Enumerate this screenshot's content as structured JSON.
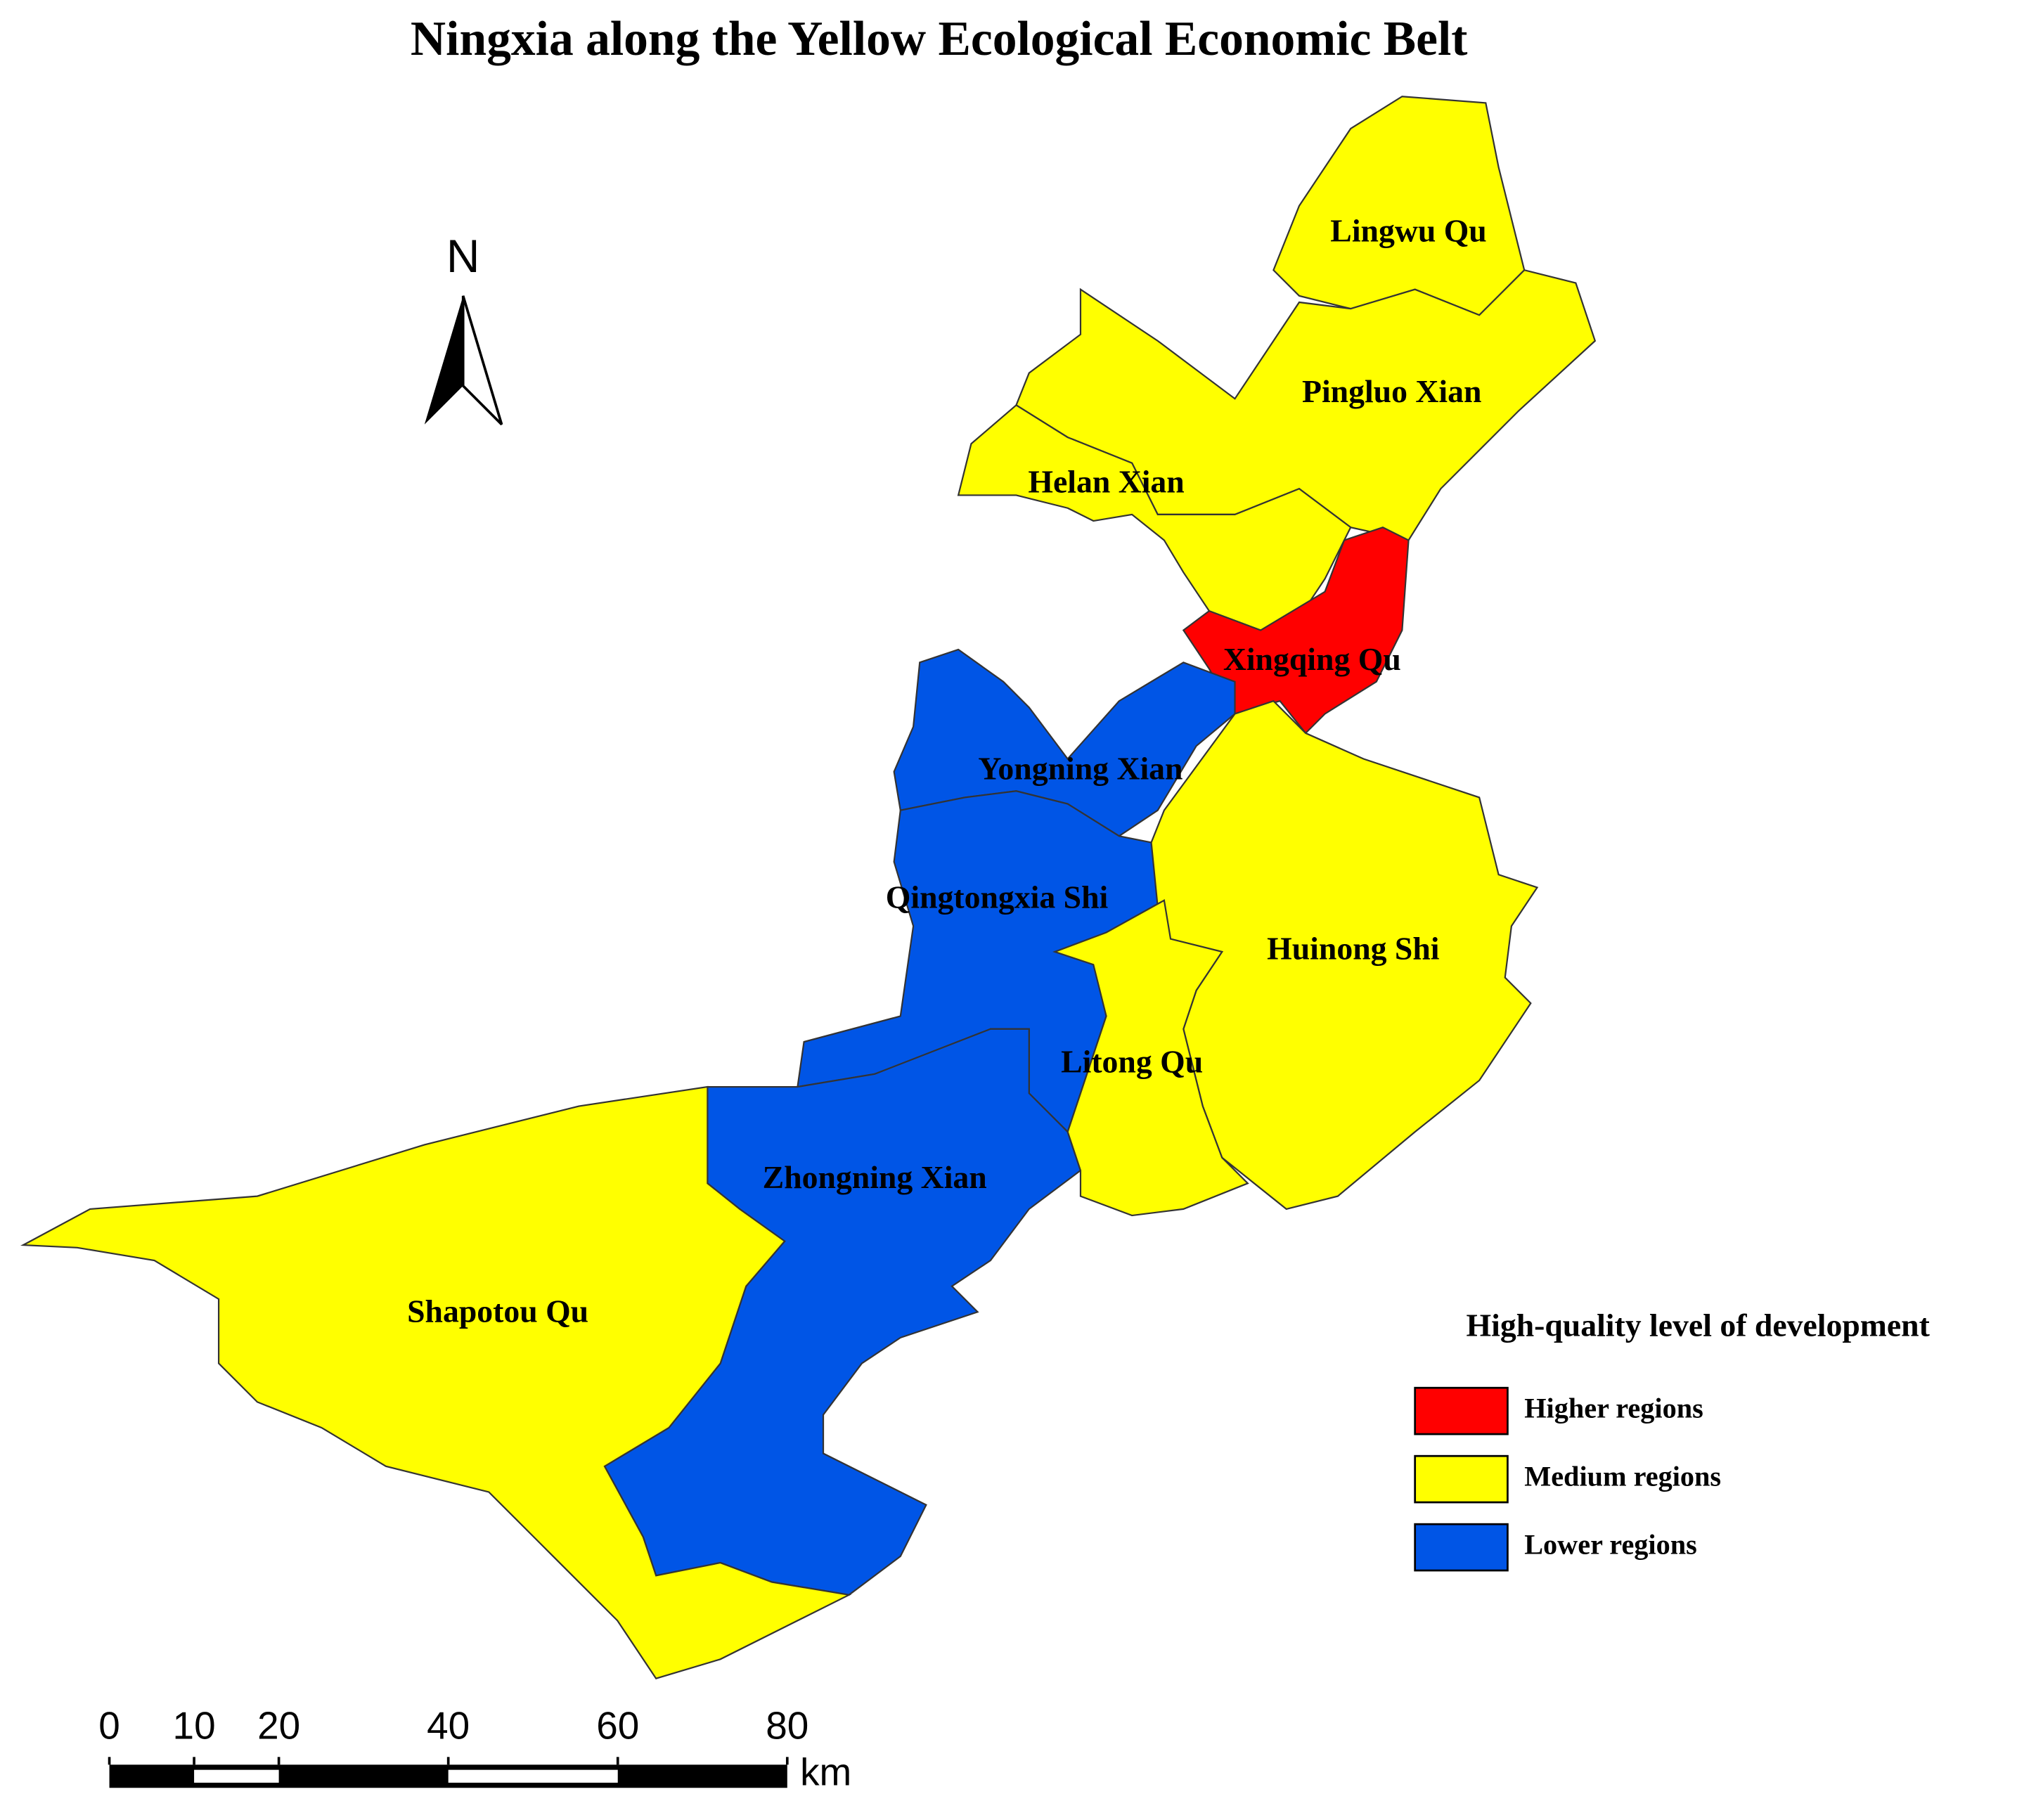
{
  "title": "Ningxia along the Yellow Ecological Economic Belt",
  "north": "N",
  "regions": [
    {
      "name": "Lingwu Qu",
      "color": "#ffff00"
    },
    {
      "name": "Pingluo Xian",
      "color": "#ffff00"
    },
    {
      "name": "Helan Xian",
      "color": "#ffff00"
    },
    {
      "name": "Xingqing Qu",
      "color": "#ff0000"
    },
    {
      "name": "Yongning Xian",
      "color": "#0055e6"
    },
    {
      "name": "Qingtongxia Shi",
      "color": "#0055e6"
    },
    {
      "name": "Zhongning Xian",
      "color": "#0055e6"
    },
    {
      "name": "Shapotou Qu",
      "color": "#ffff00"
    },
    {
      "name": "Huinong Shi",
      "color": "#ffff00"
    },
    {
      "name": "Litong Qu",
      "color": "#ffff00"
    }
  ],
  "legend": {
    "title": "High-quality level of development",
    "items": [
      {
        "label": "Higher regions",
        "color": "#ff0000"
      },
      {
        "label": "Medium regions",
        "color": "#ffff00"
      },
      {
        "label": "Lower regions",
        "color": "#0055e6"
      }
    ]
  },
  "scale_bar": {
    "ticks": [
      0,
      10,
      20,
      40,
      60,
      80
    ],
    "unit": "km"
  }
}
